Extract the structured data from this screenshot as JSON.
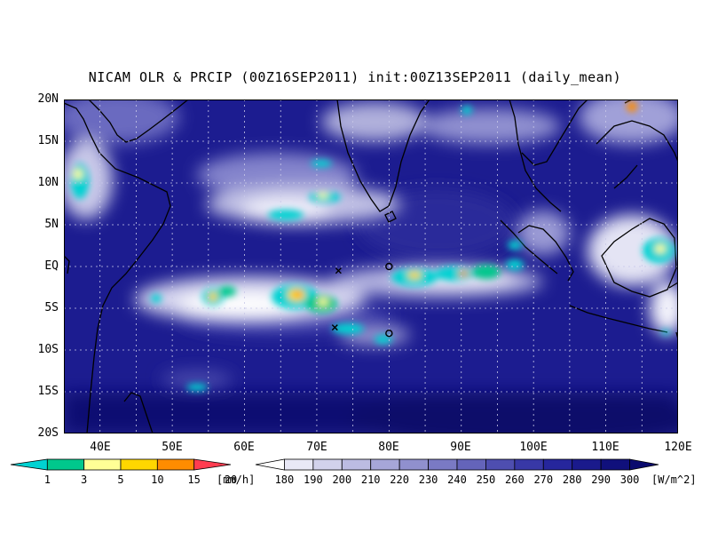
{
  "title": "NICAM OLR & PRCIP (00Z16SEP2011) init:00Z13SEP2011 (daily_mean)",
  "map": {
    "lat_labels": [
      "20N",
      "15N",
      "10N",
      "5N",
      "EQ",
      "5S",
      "10S",
      "15S",
      "20S"
    ],
    "lon_labels": [
      "40E",
      "50E",
      "60E",
      "70E",
      "80E",
      "90E",
      "100E",
      "110E",
      "120E"
    ],
    "lon_range": [
      35,
      120
    ],
    "lat_range": [
      -20,
      20
    ],
    "gridlines": "dotted",
    "markers": [
      {
        "symbol": "x",
        "lon": 73.0,
        "lat": -0.5
      },
      {
        "symbol": "x",
        "lon": 72.5,
        "lat": -7.3
      },
      {
        "symbol": "o",
        "lon": 80.0,
        "lat": 0.0
      },
      {
        "symbol": "o",
        "lon": 80.0,
        "lat": -8.0
      }
    ]
  },
  "precip_colorbar": {
    "ticks": [
      "1",
      "3",
      "5",
      "10",
      "15",
      "20"
    ],
    "unit": "[mm/h]",
    "colors": [
      "#00d2d2",
      "#00c88c",
      "#ffff96",
      "#ffd700",
      "#ff8c00",
      "#ff3c50"
    ]
  },
  "olr_colorbar": {
    "ticks": [
      "180",
      "190",
      "200",
      "210",
      "220",
      "230",
      "240",
      "250",
      "260",
      "270",
      "280",
      "290",
      "300"
    ],
    "unit": "[W/m^2]",
    "colors": [
      "#ffffff",
      "#e8e8f6",
      "#d2d2ec",
      "#bcbce2",
      "#a6a6d8",
      "#9090ce",
      "#7a7ac4",
      "#6464ba",
      "#4e4eb0",
      "#3838a6",
      "#26269c",
      "#1a1a8c",
      "#10107c",
      "#0a0a6e"
    ]
  }
}
